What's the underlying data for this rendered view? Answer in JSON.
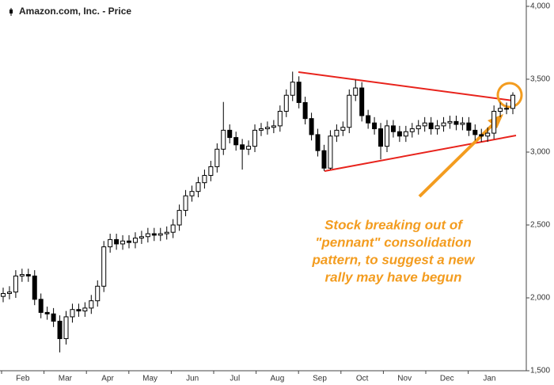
{
  "chart_data": {
    "type": "candlestick",
    "title": "Amazon.com, Inc. - Price",
    "categories": [
      "Feb",
      "Mar",
      "Apr",
      "May",
      "Jun",
      "Jul",
      "Aug",
      "Sep",
      "Oct",
      "Nov",
      "Dec",
      "Jan"
    ],
    "series": [
      {
        "name": "Amazon.com, Inc. - Price",
        "color": "#000000",
        "open": [
          2010,
          2030,
          2040,
          2150,
          2160,
          2150,
          1990,
          1900,
          1890,
          1840,
          1720,
          1870,
          1920,
          1910,
          1930,
          1980,
          2080,
          2350,
          2400,
          2370,
          2390,
          2380,
          2410,
          2420,
          2440,
          2430,
          2440,
          2450,
          2500,
          2600,
          2700,
          2730,
          2790,
          2840,
          2900,
          3020,
          3150,
          3100,
          3050,
          3020,
          3040,
          3150,
          3160,
          3170,
          3180,
          3280,
          3390,
          3480,
          3340,
          3230,
          3120,
          3010,
          2890,
          3110,
          3150,
          3170,
          3390,
          3440,
          3250,
          3200,
          3160,
          3040,
          3180,
          3140,
          3110,
          3140,
          3160,
          3180,
          3200,
          3160,
          3180,
          3200,
          3210,
          3190,
          3200,
          3150,
          3120,
          3110,
          3130,
          3280,
          3300,
          3300
        ],
        "high": [
          2070,
          2080,
          2190,
          2200,
          2200,
          2190,
          2030,
          1940,
          1930,
          1880,
          1910,
          1960,
          1960,
          1970,
          2020,
          2120,
          2390,
          2440,
          2440,
          2430,
          2430,
          2450,
          2460,
          2480,
          2480,
          2480,
          2490,
          2540,
          2640,
          2740,
          2770,
          2830,
          2880,
          2940,
          3060,
          3344,
          3190,
          3140,
          3090,
          3080,
          3190,
          3200,
          3210,
          3220,
          3320,
          3430,
          3552,
          3520,
          3380,
          3270,
          3160,
          3050,
          3150,
          3190,
          3210,
          3430,
          3496,
          3480,
          3290,
          3240,
          3200,
          3220,
          3220,
          3180,
          3180,
          3200,
          3220,
          3240,
          3240,
          3220,
          3240,
          3250,
          3250,
          3240,
          3240,
          3190,
          3160,
          3170,
          3320,
          3340,
          3340,
          3410
        ],
        "low": [
          1970,
          1990,
          2000,
          2110,
          2110,
          1950,
          1860,
          1850,
          1800,
          1626,
          1680,
          1830,
          1870,
          1870,
          1890,
          1940,
          2040,
          2310,
          2330,
          2330,
          2340,
          2340,
          2370,
          2380,
          2390,
          2390,
          2400,
          2410,
          2460,
          2560,
          2660,
          2690,
          2750,
          2800,
          2860,
          2980,
          3060,
          3010,
          2880,
          2980,
          3000,
          3110,
          3120,
          3130,
          3140,
          3240,
          3350,
          3300,
          3190,
          3080,
          2970,
          2871,
          2880,
          3070,
          3110,
          3130,
          3350,
          3210,
          3160,
          3120,
          2950,
          3000,
          3100,
          3070,
          3070,
          3100,
          3120,
          3140,
          3120,
          3120,
          3140,
          3160,
          3150,
          3150,
          3110,
          3080,
          3070,
          3070,
          3090,
          3240,
          3260,
          3260
        ],
        "close": [
          2030,
          2040,
          2150,
          2160,
          2150,
          1990,
          1900,
          1890,
          1840,
          1720,
          1870,
          1920,
          1910,
          1930,
          1980,
          2080,
          2350,
          2400,
          2370,
          2390,
          2380,
          2410,
          2420,
          2440,
          2430,
          2440,
          2450,
          2500,
          2600,
          2700,
          2730,
          2790,
          2840,
          2900,
          3020,
          3150,
          3100,
          3050,
          3020,
          3040,
          3150,
          3160,
          3170,
          3180,
          3280,
          3390,
          3480,
          3340,
          3230,
          3120,
          3010,
          2890,
          3110,
          3150,
          3170,
          3390,
          3440,
          3250,
          3200,
          3160,
          3040,
          3180,
          3140,
          3110,
          3140,
          3160,
          3180,
          3200,
          3160,
          3180,
          3200,
          3210,
          3190,
          3200,
          3150,
          3120,
          3110,
          3130,
          3280,
          3300,
          3300,
          3390
        ]
      }
    ],
    "ylim": [
      1500,
      4000
    ],
    "yticks": [
      {
        "value": 1500,
        "label": "1,500"
      },
      {
        "value": 2000,
        "label": "2,000"
      },
      {
        "value": 2500,
        "label": "2,500"
      },
      {
        "value": 3000,
        "label": "3,000"
      },
      {
        "value": 3500,
        "label": "3,500"
      },
      {
        "value": 4000,
        "label": "4,000"
      }
    ],
    "grid": false,
    "annotation": [
      "Stock breaking out of",
      "\"pennant\" consolidation",
      "pattern, to suggest a new",
      "rally may have begun"
    ]
  }
}
